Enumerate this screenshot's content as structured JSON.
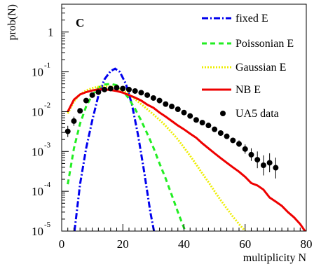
{
  "chart_data": {
    "type": "line",
    "panel_label": "C",
    "xlabel": "multiplicity N",
    "ylabel": "prob(N)",
    "xlim": [
      0,
      80
    ],
    "ylim": [
      1e-05,
      5
    ],
    "yscale": "log",
    "grid": false,
    "legend_position": "top-right",
    "x_ticks": [
      {
        "value": 0,
        "label": "0"
      },
      {
        "value": 20,
        "label": "20"
      },
      {
        "value": 40,
        "label": "40"
      },
      {
        "value": 60,
        "label": "60"
      },
      {
        "value": 80,
        "label": "80"
      }
    ],
    "y_ticks": [
      {
        "value": 1,
        "base": "1",
        "exp": ""
      },
      {
        "value": 0.1,
        "base": "10",
        "exp": "-1"
      },
      {
        "value": 0.01,
        "base": "10",
        "exp": "-2"
      },
      {
        "value": 0.001,
        "base": "10",
        "exp": "-3"
      },
      {
        "value": 0.0001,
        "base": "10",
        "exp": "-4"
      },
      {
        "value": 1e-05,
        "base": "10",
        "exp": "-5"
      }
    ],
    "series": [
      {
        "name": "fixed E",
        "kind": "line",
        "color": "#0000ee",
        "dash": "9 3 2 3",
        "x": [
          4.2,
          6,
          8,
          10,
          12,
          14,
          16,
          17.5,
          19,
          21,
          23,
          25,
          27,
          29,
          30.2
        ],
        "y": [
          1e-05,
          0.00015,
          0.0012,
          0.006,
          0.025,
          0.065,
          0.105,
          0.12,
          0.1,
          0.05,
          0.015,
          0.0025,
          0.0003,
          3e-05,
          1e-05
        ]
      },
      {
        "name": "Poissonian E",
        "kind": "line",
        "color": "#22ee22",
        "dash": "7 5",
        "x": [
          2,
          4,
          6,
          8,
          10,
          12,
          14,
          16,
          18,
          20,
          22,
          24,
          26,
          28,
          30,
          32,
          34,
          36,
          38,
          40,
          42
        ],
        "y": [
          0.00015,
          0.0012,
          0.005,
          0.0135,
          0.026,
          0.04,
          0.048,
          0.05,
          0.046,
          0.034,
          0.021,
          0.0118,
          0.006,
          0.0028,
          0.00125,
          0.0005,
          0.00021,
          8e-05,
          3e-05,
          1.2e-05,
          6e-06
        ]
      },
      {
        "name": "Gaussian E",
        "kind": "line",
        "color": "#eeee00",
        "dash": "2 2",
        "x": [
          2,
          4,
          6,
          8,
          10,
          12,
          14,
          16,
          18,
          20,
          22,
          24,
          26,
          28,
          30,
          32,
          34,
          36,
          38,
          40,
          42,
          44,
          46,
          48,
          50,
          52,
          54,
          56,
          58,
          60
        ],
        "y": [
          0.009,
          0.018,
          0.027,
          0.034,
          0.039,
          0.042,
          0.043,
          0.0425,
          0.04,
          0.034,
          0.027,
          0.0205,
          0.0155,
          0.0115,
          0.0085,
          0.0062,
          0.0044,
          0.003,
          0.002,
          0.00125,
          0.00078,
          0.00047,
          0.00028,
          0.00017,
          0.0001,
          6e-05,
          3.7e-05,
          2.3e-05,
          1.5e-05,
          1e-05
        ]
      },
      {
        "name": "NB E",
        "kind": "line",
        "color": "#ee0000",
        "dash": "",
        "x": [
          2,
          4,
          6,
          8,
          10,
          12,
          14,
          16,
          18,
          20,
          22,
          24,
          26,
          28,
          30,
          32,
          34,
          36,
          38,
          40,
          42,
          44,
          46,
          48,
          50,
          52,
          54,
          56,
          58,
          60,
          62,
          64,
          66,
          68,
          70,
          72,
          74,
          76,
          78,
          80
        ],
        "y": [
          0.01,
          0.02,
          0.027,
          0.031,
          0.034,
          0.036,
          0.036,
          0.035,
          0.033,
          0.03,
          0.026,
          0.0225,
          0.019,
          0.015,
          0.0125,
          0.0095,
          0.0075,
          0.0058,
          0.0045,
          0.0036,
          0.0028,
          0.0022,
          0.0016,
          0.0012,
          0.0009,
          0.00068,
          0.00052,
          0.0004,
          0.00031,
          0.00023,
          0.00016,
          0.00014,
          0.00011,
          7e-05,
          5.5e-05,
          4.3e-05,
          3e-05,
          2.2e-05,
          1.5e-05,
          9e-06
        ]
      },
      {
        "name": "UA5 data",
        "kind": "points",
        "color": "#000000",
        "x": [
          2,
          4,
          6,
          8,
          10,
          12,
          14,
          16,
          18,
          20,
          22,
          24,
          26,
          28,
          30,
          32,
          34,
          36,
          38,
          40,
          42,
          44,
          46,
          48,
          50,
          52,
          54,
          56,
          58,
          60,
          62,
          64,
          66,
          68,
          70
        ],
        "y": [
          0.0032,
          0.0058,
          0.0105,
          0.019,
          0.026,
          0.031,
          0.036,
          0.038,
          0.04,
          0.038,
          0.036,
          0.033,
          0.03,
          0.026,
          0.022,
          0.019,
          0.0155,
          0.0135,
          0.0115,
          0.0095,
          0.0078,
          0.0062,
          0.0053,
          0.0045,
          0.0036,
          0.0029,
          0.0024,
          0.0019,
          0.00155,
          0.00115,
          0.00083,
          0.00062,
          0.00045,
          0.00052,
          0.00039
        ],
        "err_lo": [
          0.0023,
          0.0044,
          0.0095,
          0.019,
          0.026,
          0.031,
          0.036,
          0.038,
          0.04,
          0.038,
          0.036,
          0.033,
          0.03,
          0.026,
          0.022,
          0.019,
          0.0155,
          0.0135,
          0.0115,
          0.0095,
          0.0078,
          0.0062,
          0.0053,
          0.0045,
          0.0036,
          0.0029,
          0.0024,
          0.0019,
          0.0013,
          0.00088,
          0.00058,
          0.00038,
          0.00025,
          0.0003,
          0.00021
        ],
        "err_hi": [
          0.0044,
          0.0075,
          0.0115,
          0.019,
          0.026,
          0.031,
          0.036,
          0.038,
          0.04,
          0.038,
          0.036,
          0.033,
          0.03,
          0.026,
          0.022,
          0.019,
          0.0155,
          0.0135,
          0.0115,
          0.0095,
          0.0078,
          0.0062,
          0.0053,
          0.0045,
          0.0036,
          0.0029,
          0.0024,
          0.0019,
          0.0019,
          0.0015,
          0.0012,
          0.001,
          0.0008,
          0.0009,
          0.0007
        ]
      }
    ]
  }
}
